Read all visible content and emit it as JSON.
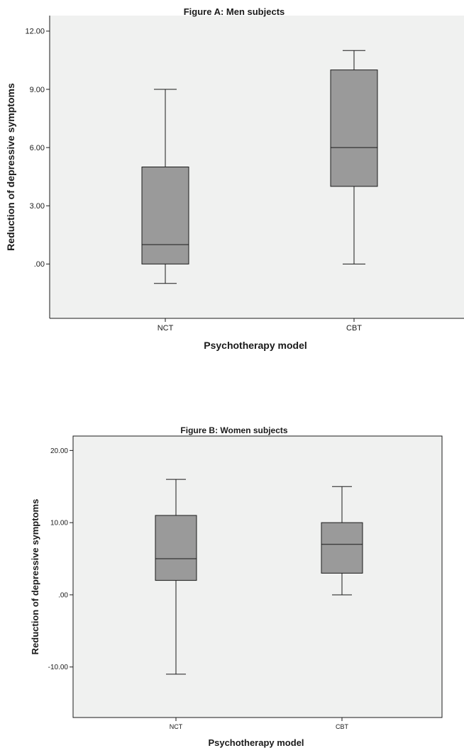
{
  "colors": {
    "plot_background": "#f0f1f0",
    "box_fill": "#9a9a9a",
    "line": "#1a1a1a",
    "page_background": "#ffffff"
  },
  "chart_data": [
    {
      "type": "boxplot",
      "title": "Figure A: Men subjects",
      "xlabel": "Psychotherapy model",
      "ylabel": "Reduction of depressive symptoms",
      "ylim": [
        -2.8,
        12.8
      ],
      "yticks": [
        {
          "value": 12,
          "label": "12.00"
        },
        {
          "value": 9,
          "label": "9.00"
        },
        {
          "value": 6,
          "label": "6.00"
        },
        {
          "value": 3,
          "label": "3.00"
        },
        {
          "value": 0,
          "label": ".00"
        }
      ],
      "categories": [
        "NCT",
        "CBT"
      ],
      "boxes": [
        {
          "category": "NCT",
          "min": -1,
          "q1": 0,
          "median": 1,
          "q3": 5,
          "max": 9
        },
        {
          "category": "CBT",
          "min": 0,
          "q1": 4,
          "median": 6,
          "q3": 10,
          "max": 11
        }
      ],
      "grid": false
    },
    {
      "type": "boxplot",
      "title": "Figure B: Women subjects",
      "xlabel": "Psychotherapy model",
      "ylabel": "Reduction of depressive symptoms",
      "ylim": [
        -17,
        22
      ],
      "yticks": [
        {
          "value": 20,
          "label": "20.00"
        },
        {
          "value": 10,
          "label": "10.00"
        },
        {
          "value": 0,
          "label": ".00"
        },
        {
          "value": -10,
          "label": "-10.00"
        }
      ],
      "categories": [
        "NCT",
        "CBT"
      ],
      "boxes": [
        {
          "category": "NCT",
          "min": -11,
          "q1": 2,
          "median": 5,
          "q3": 11,
          "max": 16
        },
        {
          "category": "CBT",
          "min": 0,
          "q1": 3,
          "median": 7,
          "q3": 10,
          "max": 15
        }
      ],
      "grid": false
    }
  ]
}
